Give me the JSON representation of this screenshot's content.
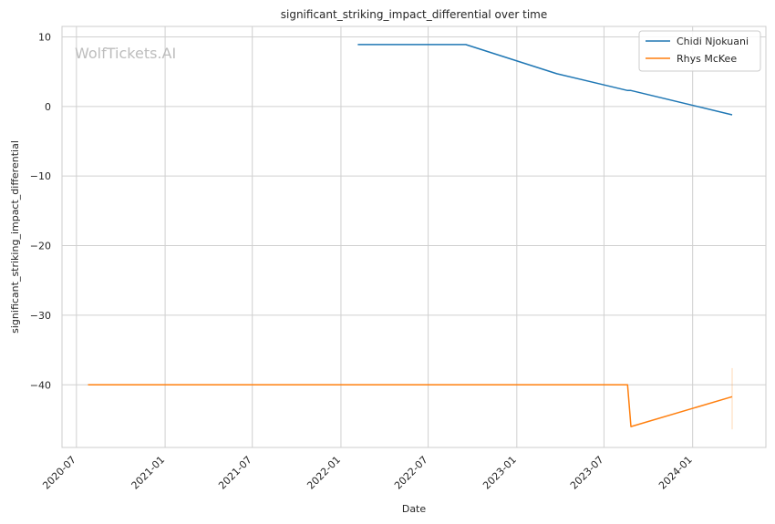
{
  "watermark": "WolfTickets.AI",
  "chart_data": {
    "type": "line",
    "title": "significant_striking_impact_differential over time",
    "xlabel": "Date",
    "ylabel": "significant_striking_impact_differential",
    "xlim": [
      "2020-06-01",
      "2024-06-01"
    ],
    "ylim": [
      -49,
      11.5
    ],
    "xticks": [
      "2020-07",
      "2021-01",
      "2021-07",
      "2022-01",
      "2022-07",
      "2023-01",
      "2023-07",
      "2024-01"
    ],
    "yticks": [
      10,
      0,
      -10,
      -20,
      -30,
      -40
    ],
    "ytick_labels": [
      "10",
      "0",
      "−10",
      "−20",
      "−30",
      "−40"
    ],
    "grid": true,
    "legend_position": "top-right",
    "series": [
      {
        "name": "Chidi Njokuani",
        "color": "#1f77b4",
        "x": [
          "2022-02-05",
          "2022-09-17",
          "2023-03-25",
          "2023-08-19",
          "2023-08-26",
          "2024-03-23"
        ],
        "y": [
          8.9,
          8.9,
          4.7,
          2.3,
          2.3,
          -1.2
        ]
      },
      {
        "name": "Rhys McKee",
        "color": "#ff7f0e",
        "x": [
          "2020-07-25",
          "2023-08-19",
          "2023-08-26",
          "2024-03-23"
        ],
        "y": [
          -40,
          -40,
          -46,
          -41.7
        ]
      }
    ]
  }
}
